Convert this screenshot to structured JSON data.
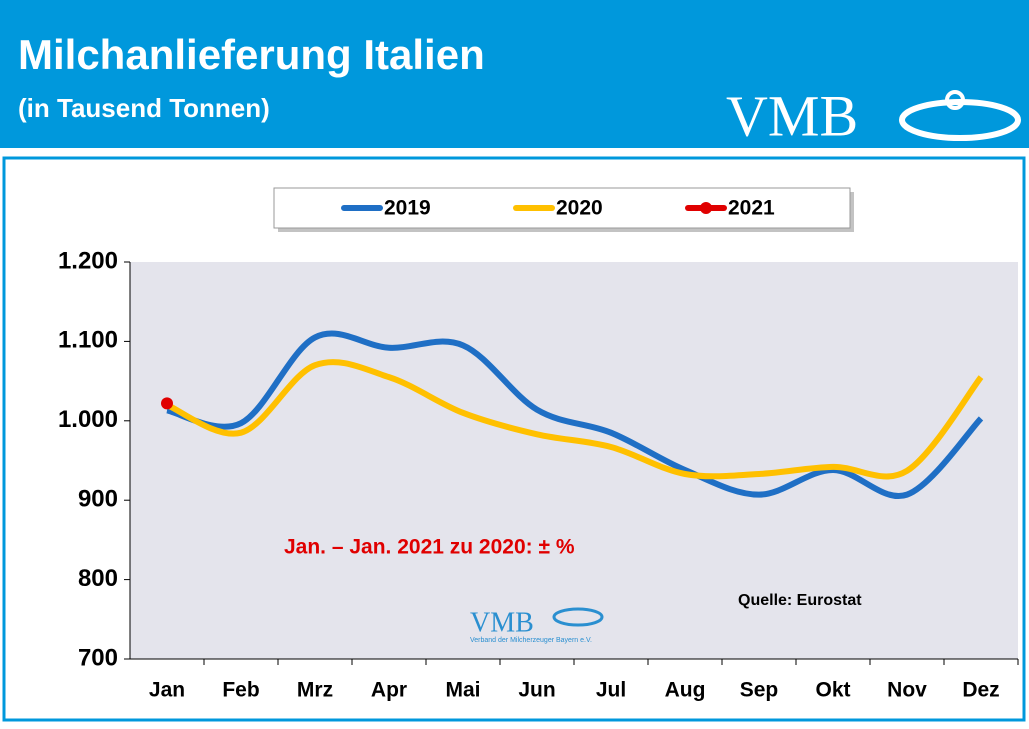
{
  "chart_data": {
    "type": "line",
    "title": "Milchanlieferung Italien",
    "subtitle": "(in Tausend Tonnen)",
    "logo": "VMB",
    "categories": [
      "Jan",
      "Feb",
      "Mrz",
      "Apr",
      "Mai",
      "Jun",
      "Jul",
      "Aug",
      "Sep",
      "Okt",
      "Nov",
      "Dez"
    ],
    "series": [
      {
        "name": "2019",
        "color": "#1f6fc5",
        "values": [
          1013,
          997,
          1105,
          1092,
          1095,
          1014,
          985,
          938,
          907,
          938,
          907,
          1003
        ]
      },
      {
        "name": "2020",
        "color": "#ffc000",
        "values": [
          1020,
          985,
          1070,
          1055,
          1010,
          983,
          967,
          933,
          933,
          942,
          937,
          1055
        ]
      },
      {
        "name": "2021",
        "color": "#e00000",
        "marker": true,
        "values": [
          1022,
          null,
          null,
          null,
          null,
          null,
          null,
          null,
          null,
          null,
          null,
          null
        ]
      }
    ],
    "ylim": [
      700,
      1200
    ],
    "yticks": [
      700,
      800,
      900,
      {
        "value": 1000,
        "label": "1.000"
      },
      {
        "value": 1100,
        "label": "1.100"
      },
      {
        "value": 1200,
        "label": "1.200"
      }
    ],
    "grid": false,
    "legend": "top",
    "annotation": "Jan. – Jan. 2021 zu 2020: ± %",
    "source": "Quelle: Eurostat",
    "watermark": {
      "logo": "VMB",
      "caption": "Verband der Milcherzeuger Bayern e.V."
    }
  }
}
